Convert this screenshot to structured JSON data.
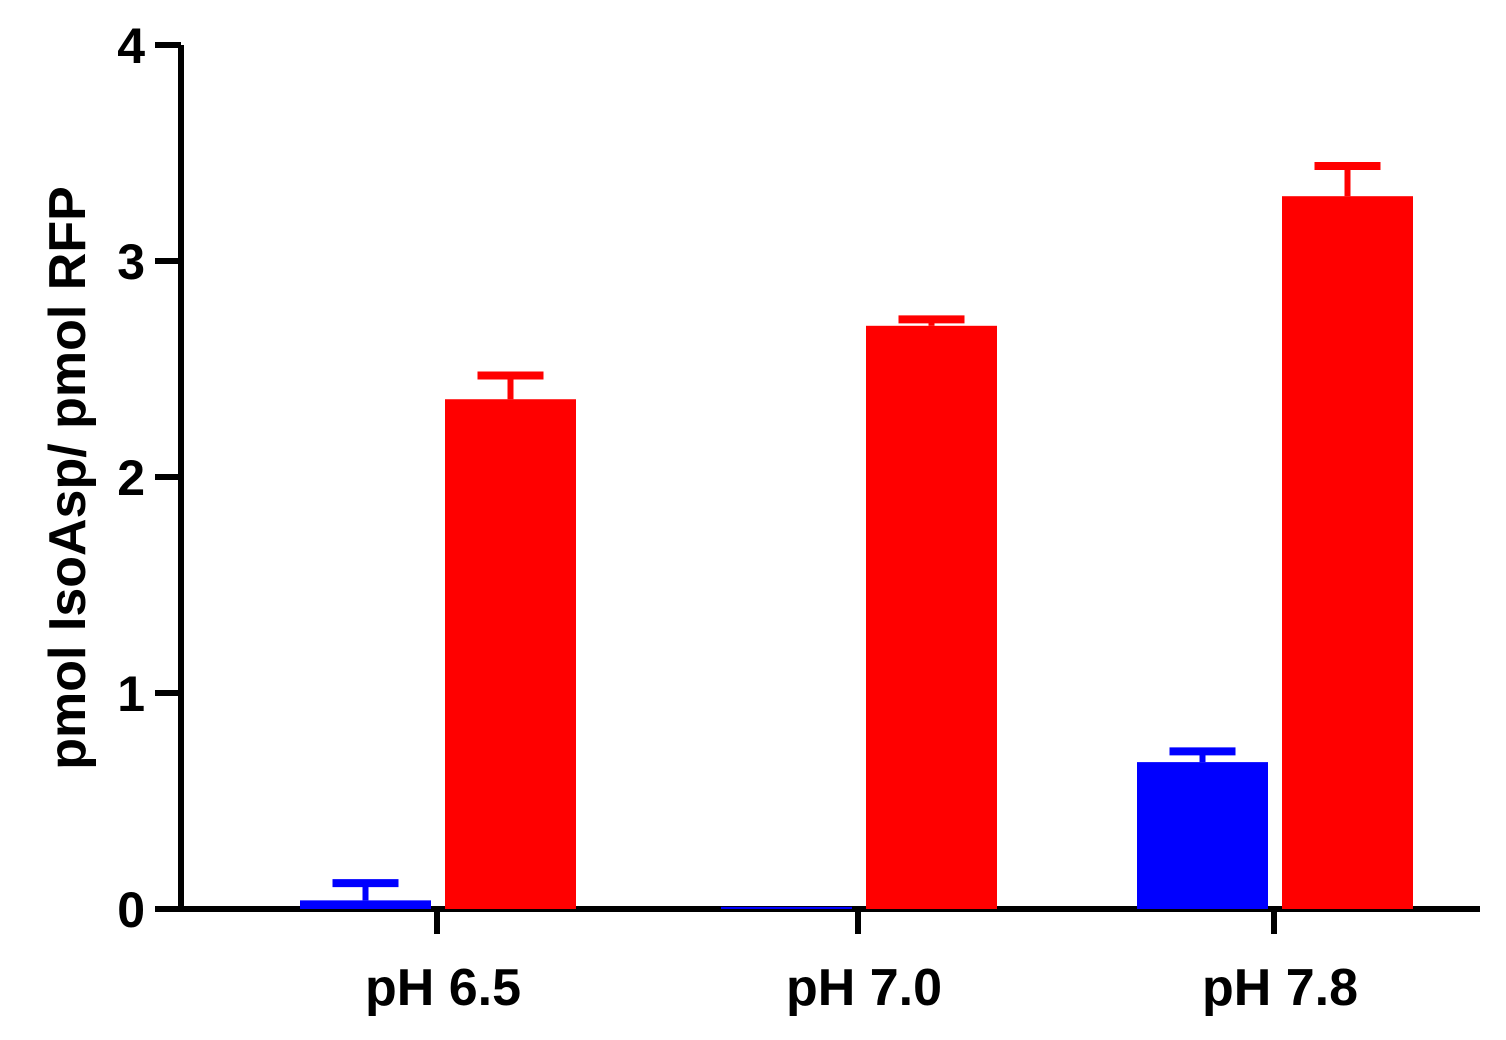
{
  "chart_data": {
    "type": "bar",
    "title": "",
    "xlabel": "",
    "ylabel": "pmol IsoAsp/ pmol RFP",
    "categories": [
      "pH 6.5",
      "pH 7.0",
      "pH 7.8"
    ],
    "ylim": [
      0,
      4
    ],
    "yticks": [
      0,
      1,
      2,
      3,
      4
    ],
    "ytick_labels": [
      "0",
      "1",
      "2",
      "3",
      "4"
    ],
    "grid": false,
    "legend": "none",
    "series": [
      {
        "color": "#0000ff",
        "values": [
          0.04,
          0.01,
          0.68
        ],
        "errors_upper": [
          0.08,
          0.0,
          0.05
        ]
      },
      {
        "color": "#ff0000",
        "values": [
          2.36,
          2.7,
          3.3
        ],
        "errors_upper": [
          0.11,
          0.03,
          0.14
        ]
      }
    ]
  }
}
